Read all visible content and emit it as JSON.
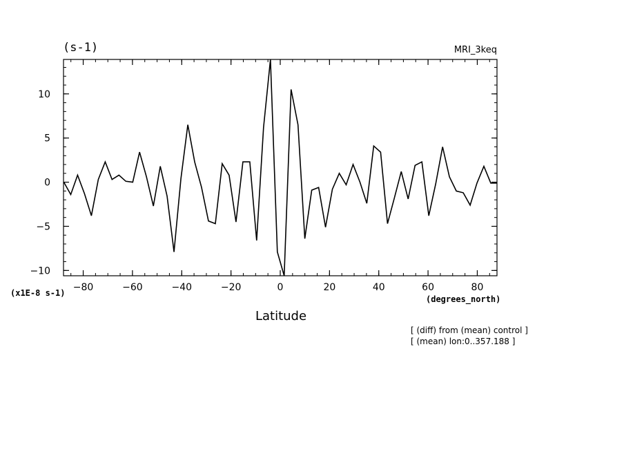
{
  "chart_data": {
    "type": "line",
    "units_label": "(s-1)",
    "model": "MRI_3keq",
    "xlabel": "Latitude",
    "x_units": "(degrees_north)",
    "y_scale_label": "(x1E-8 s-1)",
    "notes": [
      "[ (diff) from (mean) control ]",
      "[ (mean) lon:0..357.188 ]"
    ],
    "xlim": [
      -88,
      88
    ],
    "ylim": [
      -10.6,
      13.9
    ],
    "x_ticks": [
      -80,
      -60,
      -40,
      -20,
      0,
      20,
      40,
      60,
      80
    ],
    "x_tick_labels": [
      "−80",
      "−60",
      "−40",
      "−20",
      "0",
      "20",
      "40",
      "60",
      "80"
    ],
    "y_ticks": [
      -10,
      -5,
      0,
      5,
      10
    ],
    "y_tick_labels": [
      "−10",
      "−5",
      "0",
      "5",
      "10"
    ],
    "series": [
      {
        "x": [
          -87.86,
          -85.06,
          -82.27,
          -79.47,
          -76.68,
          -73.88,
          -71.08,
          -68.29,
          -65.49,
          -62.7,
          -59.9,
          -57.11,
          -54.31,
          -51.51,
          -48.72,
          -45.92,
          -43.13,
          -40.33,
          -37.54,
          -34.74,
          -31.94,
          -29.15,
          -26.35,
          -23.56,
          -20.76,
          -17.97,
          -15.17,
          -12.37,
          -9.58,
          -6.78,
          -3.99,
          -1.19,
          1.6,
          4.4,
          7.2,
          9.99,
          12.79,
          15.58,
          18.38,
          21.17,
          23.97,
          26.77,
          29.56,
          32.36,
          35.15,
          37.95,
          40.74,
          43.54,
          46.34,
          49.13,
          51.93,
          54.72,
          57.52,
          60.31,
          63.11,
          65.91,
          68.7,
          71.5,
          74.29,
          77.09,
          79.88,
          82.68,
          85.47,
          87.86
        ],
        "values": [
          0.0,
          -1.4,
          0.8,
          -1.3,
          -3.8,
          0.3,
          2.3,
          0.3,
          0.8,
          0.1,
          0.0,
          3.4,
          0.6,
          -2.7,
          1.8,
          -1.6,
          -7.9,
          0.4,
          6.5,
          2.3,
          -0.6,
          -4.4,
          -4.7,
          2.1,
          0.8,
          -4.5,
          2.3,
          2.3,
          -6.6,
          6.2,
          13.9,
          -7.9,
          -10.6,
          10.5,
          6.5,
          -6.4,
          -0.9,
          -0.6,
          -5.1,
          -0.8,
          1.0,
          -0.3,
          2.0,
          0.0,
          -2.4,
          4.1,
          3.4,
          -4.7,
          -1.8,
          1.2,
          -1.9,
          1.9,
          2.3,
          -3.8,
          -0.2,
          4.0,
          0.6,
          -1.0,
          -1.2,
          -2.6,
          -0.1,
          1.8,
          -0.1,
          -0.1
        ]
      }
    ]
  }
}
